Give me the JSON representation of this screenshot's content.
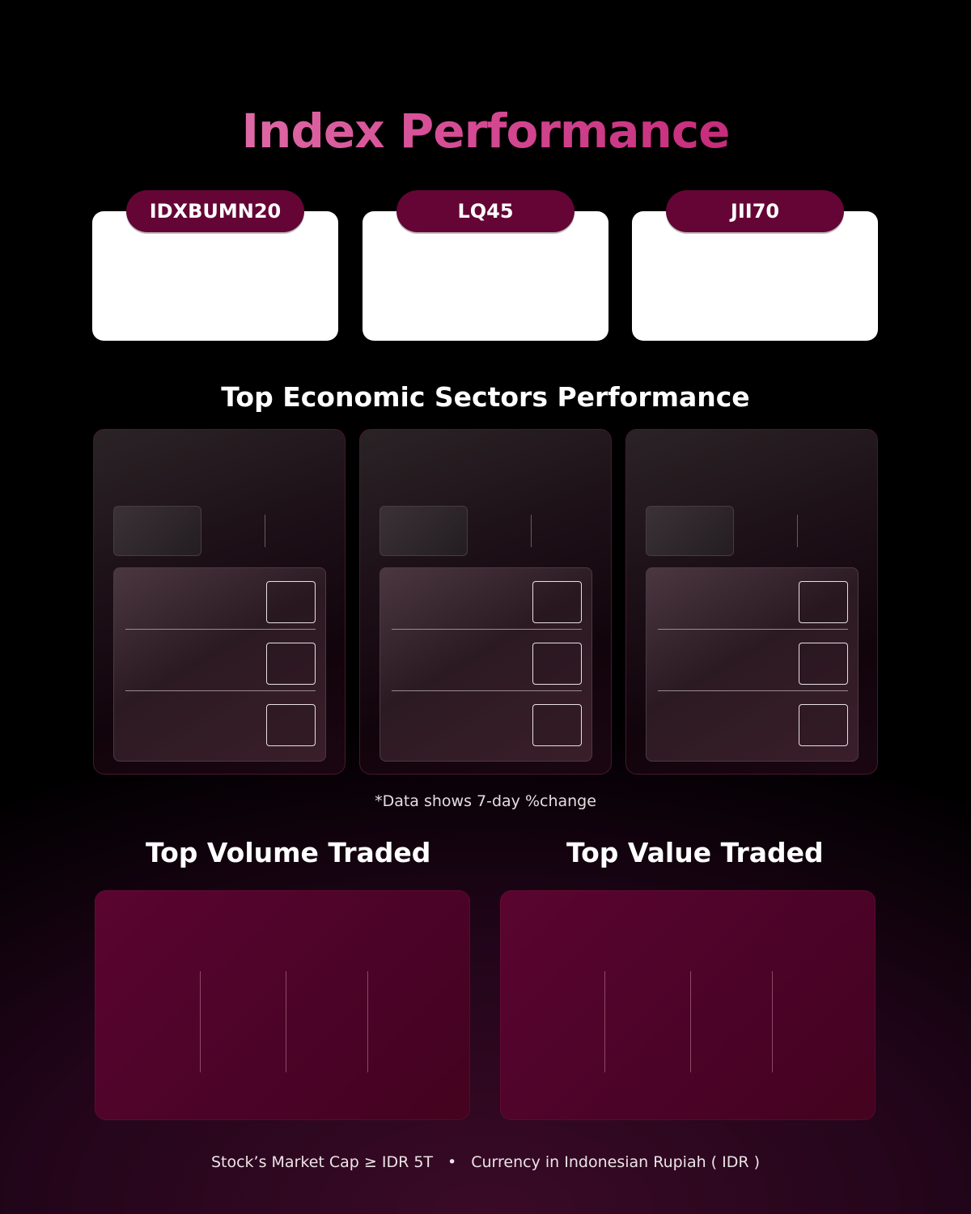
{
  "header": {
    "title": "Index Performance"
  },
  "indices": [
    {
      "label": "IDXBUMN20"
    },
    {
      "label": "LQ45"
    },
    {
      "label": "JII70"
    }
  ],
  "sectors": {
    "title": "Top Economic Sectors Performance",
    "footnote": "*Data shows 7-day %change"
  },
  "traded": {
    "volume_title": "Top Volume Traded",
    "value_title": "Top Value Traded"
  },
  "footer": {
    "market_cap_note": "Stock’s Market Cap ≥ IDR 5T",
    "separator": "•",
    "currency_note": "Currency in Indonesian Rupiah ( IDR )"
  },
  "colors": {
    "background": "#000000",
    "accent": "#650535",
    "title_gradient_start": "#e889b6",
    "title_gradient_end": "#b80f64",
    "traded_card": "#5a0530"
  }
}
